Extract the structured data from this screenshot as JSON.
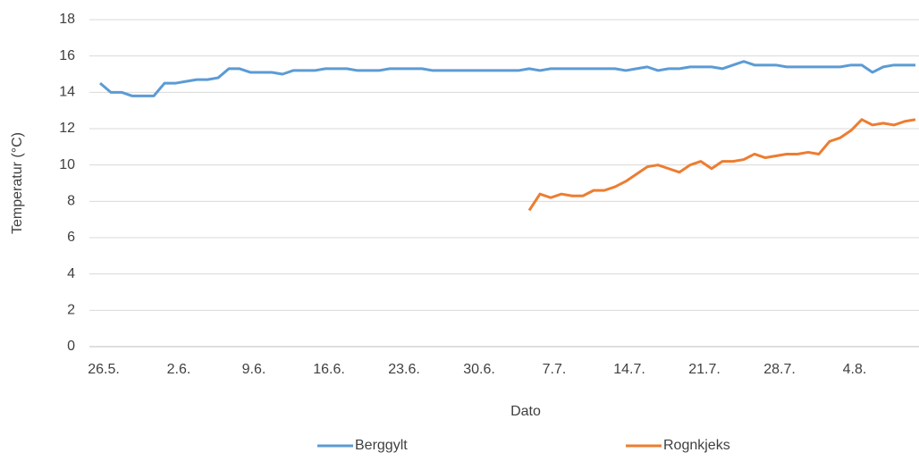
{
  "chart_data": {
    "type": "line",
    "x_label": "Dato",
    "y_label": "Temperatur (°C)",
    "categories": [
      "26.5.",
      null,
      null,
      null,
      null,
      null,
      null,
      "2.6.",
      null,
      null,
      null,
      null,
      null,
      null,
      "9.6.",
      null,
      null,
      null,
      null,
      null,
      null,
      "16.6.",
      null,
      null,
      null,
      null,
      null,
      null,
      "23.6.",
      null,
      null,
      null,
      null,
      null,
      null,
      "30.6.",
      null,
      null,
      null,
      null,
      null,
      null,
      "7.7.",
      null,
      null,
      null,
      null,
      null,
      null,
      "14.7.",
      null,
      null,
      null,
      null,
      null,
      null,
      "21.7.",
      null,
      null,
      null,
      null,
      null,
      null,
      "28.7.",
      null,
      null,
      null,
      null,
      null,
      null,
      "4.8.",
      null,
      null,
      null,
      null,
      null,
      null
    ],
    "series": [
      {
        "name": "Berggylt",
        "color": "#5b9bd5",
        "values": [
          14.5,
          14.0,
          14.0,
          13.8,
          13.8,
          13.8,
          14.5,
          14.5,
          14.6,
          14.7,
          14.7,
          14.8,
          15.3,
          15.3,
          15.1,
          15.1,
          15.1,
          15.0,
          15.2,
          15.2,
          15.2,
          15.3,
          15.3,
          15.3,
          15.2,
          15.2,
          15.2,
          15.3,
          15.3,
          15.3,
          15.3,
          15.2,
          15.2,
          15.2,
          15.2,
          15.2,
          15.2,
          15.2,
          15.2,
          15.2,
          15.3,
          15.2,
          15.3,
          15.3,
          15.3,
          15.3,
          15.3,
          15.3,
          15.3,
          15.2,
          15.3,
          15.4,
          15.2,
          15.3,
          15.3,
          15.4,
          15.4,
          15.4,
          15.3,
          15.5,
          15.7,
          15.5,
          15.5,
          15.5,
          15.4,
          15.4,
          15.4,
          15.4,
          15.4,
          15.4,
          15.5,
          15.5,
          15.1,
          15.4,
          15.5,
          15.5,
          15.5
        ]
      },
      {
        "name": "Rognkjeks",
        "color": "#ed7d31",
        "values": [
          null,
          null,
          null,
          null,
          null,
          null,
          null,
          null,
          null,
          null,
          null,
          null,
          null,
          null,
          null,
          null,
          null,
          null,
          null,
          null,
          null,
          null,
          null,
          null,
          null,
          null,
          null,
          null,
          null,
          null,
          null,
          null,
          null,
          null,
          null,
          null,
          null,
          null,
          null,
          null,
          7.5,
          8.4,
          8.2,
          8.4,
          8.3,
          8.3,
          8.6,
          8.6,
          8.8,
          9.1,
          9.5,
          9.9,
          10.0,
          9.8,
          9.6,
          10.0,
          10.2,
          9.8,
          10.2,
          10.2,
          10.3,
          10.6,
          10.4,
          10.5,
          10.6,
          10.6,
          10.7,
          10.6,
          11.3,
          11.5,
          11.9,
          12.5,
          12.2,
          12.3,
          12.2,
          12.4,
          12.5
        ]
      }
    ],
    "ylim": [
      0,
      18
    ],
    "yticks": [
      0,
      2,
      4,
      6,
      8,
      10,
      12,
      14,
      16,
      18
    ],
    "grid": true,
    "legend": "bottom"
  }
}
